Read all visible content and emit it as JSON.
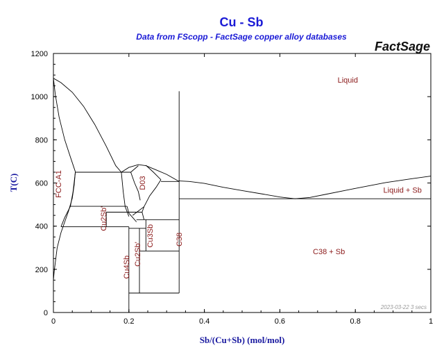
{
  "header": {
    "title": "Cu - Sb",
    "subtitle": "Data from FScopp - FactSage copper alloy databases",
    "brand": "FactSage"
  },
  "footer": {
    "stamp": "2023-03-22  3 secs"
  },
  "chart_data": {
    "type": "phase-diagram",
    "title": "Cu - Sb",
    "subtitle": "Data from FScopp - FactSage copper alloy databases",
    "xlabel": "Sb/(Cu+Sb) (mol/mol)",
    "ylabel": "T(C)",
    "xlim": [
      0,
      1
    ],
    "ylim": [
      0,
      1200
    ],
    "xticks": [
      "0",
      "0.2",
      "0.4",
      "0.6",
      "0.8",
      "1"
    ],
    "xtick_values": [
      0,
      0.2,
      0.4,
      0.6,
      0.8,
      1
    ],
    "yticks": [
      "0",
      "200",
      "400",
      "600",
      "800",
      "1000",
      "1200"
    ],
    "ytick_values": [
      0,
      200,
      400,
      600,
      800,
      1000,
      1200
    ],
    "grid": false,
    "region_labels": [
      {
        "id": "liquid",
        "text": "Liquid",
        "x": 0.78,
        "y": 1065,
        "rotate": 0
      },
      {
        "id": "liquid-sb",
        "text": "Liquid + Sb",
        "x": 0.925,
        "y": 555,
        "rotate": 0
      },
      {
        "id": "c38-sb",
        "text": "C38 + Sb",
        "x": 0.73,
        "y": 270,
        "rotate": 0
      },
      {
        "id": "fcc-a1",
        "text": "FCC-A1",
        "x": 0.02,
        "y": 595,
        "rotate": -90
      },
      {
        "id": "d03",
        "text": "D03",
        "x": 0.243,
        "y": 600,
        "rotate": -90
      },
      {
        "id": "c38",
        "text": "C38",
        "x": 0.34,
        "y": 338,
        "rotate": -90
      },
      {
        "id": "cu2sb-a",
        "text": "Cu2Sb'",
        "x": 0.14,
        "y": 435,
        "rotate": -90
      },
      {
        "id": "cu3sb",
        "text": "Cu3Sb",
        "x": 0.263,
        "y": 355,
        "rotate": -90
      },
      {
        "id": "cu4sb",
        "text": "Cu4Sb",
        "x": 0.2,
        "y": 210,
        "rotate": -90
      },
      {
        "id": "cu2sb-b",
        "text": "Cu2Sb'",
        "x": 0.23,
        "y": 270,
        "rotate": -90
      }
    ],
    "boundaries": [
      {
        "name": "liquidus-cu-side",
        "points": [
          [
            0,
            1085
          ],
          [
            0.02,
            1065
          ],
          [
            0.05,
            1020
          ],
          [
            0.08,
            955
          ],
          [
            0.11,
            870
          ],
          [
            0.14,
            770
          ],
          [
            0.165,
            680
          ],
          [
            0.18,
            650
          ]
        ]
      },
      {
        "name": "d03-liquidus",
        "points": [
          [
            0.18,
            650
          ],
          [
            0.2,
            672
          ],
          [
            0.225,
            685
          ],
          [
            0.245,
            680
          ],
          [
            0.27,
            662
          ],
          [
            0.3,
            640
          ],
          [
            0.33,
            610
          ],
          [
            0.36,
            607
          ],
          [
            0.4,
            598
          ],
          [
            0.45,
            580
          ],
          [
            0.5,
            565
          ],
          [
            0.55,
            550
          ],
          [
            0.6,
            535
          ],
          [
            0.64,
            527
          ],
          [
            0.68,
            533
          ],
          [
            0.72,
            547
          ],
          [
            0.8,
            575
          ],
          [
            0.88,
            602
          ],
          [
            0.95,
            620
          ],
          [
            1.0,
            632
          ]
        ]
      },
      {
        "name": "fcc-solidus",
        "points": [
          [
            0,
            1085
          ],
          [
            0.005,
            1010
          ],
          [
            0.015,
            905
          ],
          [
            0.03,
            800
          ],
          [
            0.045,
            720
          ],
          [
            0.058,
            652
          ]
        ]
      },
      {
        "name": "fcc-solvus",
        "points": [
          [
            0.058,
            652
          ],
          [
            0.055,
            590
          ],
          [
            0.05,
            530
          ],
          [
            0.04,
            470
          ],
          [
            0.03,
            420
          ],
          [
            0.02,
            370
          ],
          [
            0.01,
            300
          ],
          [
            0.002,
            190
          ]
        ]
      },
      {
        "name": "d03-left-upper",
        "points": [
          [
            0.205,
            650
          ],
          [
            0.225,
            680
          ]
        ]
      },
      {
        "name": "d03-right-upper",
        "points": [
          [
            0.245,
            682
          ],
          [
            0.265,
            650
          ],
          [
            0.285,
            615
          ]
        ]
      },
      {
        "name": "d03-left-lower",
        "points": [
          [
            0.18,
            650
          ],
          [
            0.185,
            560
          ],
          [
            0.19,
            490
          ],
          [
            0.2,
            445
          ]
        ]
      },
      {
        "name": "d03-right-lower",
        "points": [
          [
            0.285,
            615
          ],
          [
            0.272,
            580
          ],
          [
            0.255,
            540
          ],
          [
            0.24,
            490
          ],
          [
            0.235,
            465
          ],
          [
            0.24,
            430
          ]
        ]
      },
      {
        "name": "d03-mid-left",
        "points": [
          [
            0.205,
            650
          ],
          [
            0.215,
            600
          ],
          [
            0.225,
            560
          ],
          [
            0.23,
            520
          ]
        ]
      },
      {
        "name": "cu2sb-left",
        "points": [
          [
            0.195,
            492
          ],
          [
            0.2,
            460
          ],
          [
            0.21,
            440
          ],
          [
            0.22,
            420
          ]
        ]
      },
      {
        "name": "cu2sb-right",
        "points": [
          [
            0.24,
            490
          ],
          [
            0.225,
            470
          ],
          [
            0.21,
            450
          ]
        ]
      },
      {
        "name": "c38-line",
        "points": [
          [
            0.333,
            1025
          ],
          [
            0.333,
            90
          ]
        ]
      },
      {
        "name": "eutectic-line",
        "points": [
          [
            0.333,
            527
          ],
          [
            1.0,
            527
          ]
        ]
      },
      {
        "name": "sb-line",
        "points": [
          [
            1.0,
            0
          ],
          [
            1.0,
            632
          ]
        ]
      },
      {
        "name": "line-650",
        "points": [
          [
            0.058,
            650
          ],
          [
            0.205,
            650
          ]
        ]
      },
      {
        "name": "line-607",
        "points": [
          [
            0.285,
            607
          ],
          [
            0.333,
            607
          ]
        ]
      },
      {
        "name": "line-492",
        "points": [
          [
            0.045,
            492
          ],
          [
            0.195,
            492
          ]
        ]
      },
      {
        "name": "line-465",
        "points": [
          [
            0.14,
            465
          ],
          [
            0.235,
            465
          ]
        ]
      },
      {
        "name": "line-430",
        "points": [
          [
            0.22,
            430
          ],
          [
            0.333,
            430
          ]
        ]
      },
      {
        "name": "line-400",
        "points": [
          [
            0.02,
            397
          ],
          [
            0.2,
            397
          ]
        ]
      },
      {
        "name": "line-390",
        "points": [
          [
            0.2,
            390
          ],
          [
            0.245,
            390
          ]
        ]
      },
      {
        "name": "line-285",
        "points": [
          [
            0.228,
            285
          ],
          [
            0.333,
            285
          ]
        ]
      },
      {
        "name": "line-90",
        "points": [
          [
            0.2,
            90
          ],
          [
            0.333,
            90
          ]
        ]
      },
      {
        "name": "cu4sb-left",
        "points": [
          [
            0.2,
            0
          ],
          [
            0.2,
            397
          ]
        ]
      },
      {
        "name": "cu4sb-right",
        "points": [
          [
            0.228,
            90
          ],
          [
            0.228,
            390
          ]
        ]
      },
      {
        "name": "cu2sb-mid",
        "points": [
          [
            0.245,
            285
          ],
          [
            0.245,
            430
          ]
        ]
      },
      {
        "name": "fcc-left-tail",
        "points": [
          [
            0.002,
            190
          ],
          [
            0.0,
            150
          ]
        ]
      },
      {
        "name": "cu2sb-box-left",
        "points": [
          [
            0.14,
            465
          ],
          [
            0.14,
            397
          ]
        ]
      },
      {
        "name": "fcc-vertical-right",
        "points": [
          [
            0.058,
            650
          ],
          [
            0.052,
            560
          ],
          [
            0.045,
            492
          ]
        ]
      },
      {
        "name": "fcc-vertical-left",
        "points": [
          [
            0.045,
            492
          ],
          [
            0.03,
            440
          ],
          [
            0.02,
            397
          ]
        ]
      }
    ]
  }
}
